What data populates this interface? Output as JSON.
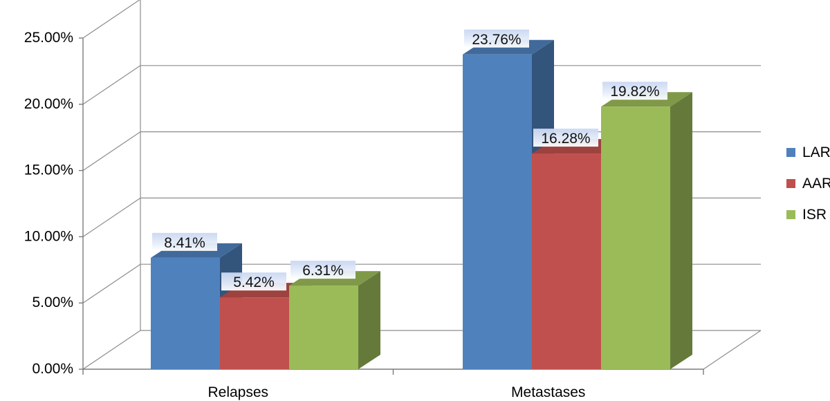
{
  "chart_data": {
    "type": "bar",
    "categories": [
      "Relapses",
      "Metastases"
    ],
    "series": [
      {
        "name": "LAR",
        "values": [
          8.41,
          23.76
        ],
        "color": "#4F81BD",
        "labels": [
          "8.41%",
          "23.76%"
        ]
      },
      {
        "name": "AAR",
        "values": [
          5.42,
          16.28
        ],
        "color": "#C0504D",
        "labels": [
          "5.42%",
          "16.28%"
        ]
      },
      {
        "name": "ISR",
        "values": [
          6.31,
          19.82
        ],
        "color": "#9BBB59",
        "labels": [
          "6.31%",
          "19.82%"
        ]
      }
    ],
    "yticks": [
      0,
      5,
      10,
      15,
      20,
      25
    ],
    "ytick_labels": [
      "0.00%",
      "5.00%",
      "10.00%",
      "15.00%",
      "20.00%",
      "25.00%"
    ],
    "ylim": [
      0,
      25
    ],
    "grid": true,
    "legend": "right",
    "style": "3d-clustered-column"
  }
}
